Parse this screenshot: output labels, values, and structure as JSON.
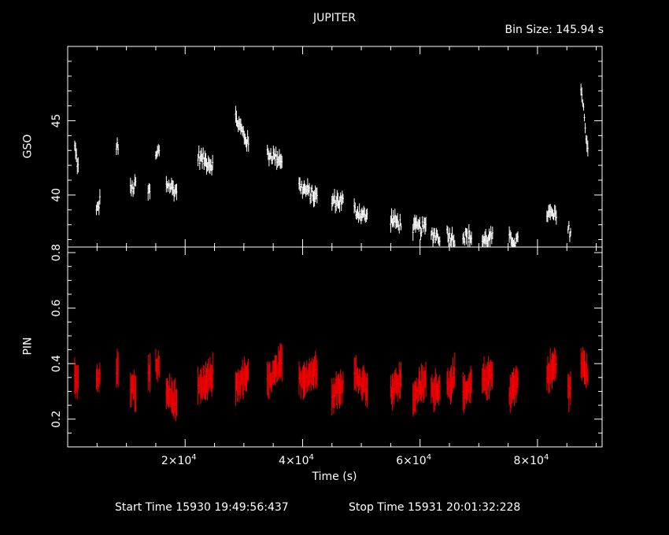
{
  "header": {
    "title": "JUPITER",
    "bin_size": "Bin Size:  145.94  s"
  },
  "footer": {
    "start_time": "Start Time 15930 19:49:56:437",
    "stop_time": "Stop Time 15931 20:01:32:228"
  },
  "colors": {
    "background": "#000000",
    "gso_series": "#ffffff",
    "pin_series": "#ff0000",
    "axes": "#ffffff"
  },
  "chart_data": [
    {
      "type": "scatter",
      "panel": "top",
      "ylabel": "GSO",
      "xlabel": "",
      "xlim": [
        0,
        91000
      ],
      "ylim": [
        36.5,
        50
      ],
      "yticks": [
        40,
        45
      ],
      "error_bars": true,
      "series": [
        {
          "color": "#ffffff",
          "segments": [
            {
              "x": [
                1200,
                1900
              ],
              "y": [
                43.2,
                41.6
              ]
            },
            {
              "x": [
                4900,
                5500
              ],
              "y": [
                38.8,
                39.6
              ]
            },
            {
              "x": [
                8300,
                8700
              ],
              "y": [
                43.4,
                43.2
              ]
            },
            {
              "x": [
                10700,
                11600
              ],
              "y": [
                40.3,
                40.7
              ]
            },
            {
              "x": [
                13700,
                14000
              ],
              "y": [
                40.2,
                40.2
              ]
            },
            {
              "x": [
                15000,
                15600
              ],
              "y": [
                42.5,
                43.1
              ]
            },
            {
              "x": [
                16800,
                18600
              ],
              "y": [
                40.8,
                40.2
              ]
            },
            {
              "x": [
                22200,
                24800
              ],
              "y": [
                42.6,
                42.0
              ]
            },
            {
              "x": [
                28600,
                30800
              ],
              "y": [
                45.2,
                43.4
              ]
            },
            {
              "x": [
                34000,
                36500
              ],
              "y": [
                42.8,
                42.4
              ]
            },
            {
              "x": [
                39400,
                42600
              ],
              "y": [
                40.6,
                39.8
              ]
            },
            {
              "x": [
                45000,
                47000
              ],
              "y": [
                39.6,
                39.6
              ]
            },
            {
              "x": [
                48800,
                51000
              ],
              "y": [
                39.0,
                38.5
              ]
            },
            {
              "x": [
                55000,
                56800
              ],
              "y": [
                38.4,
                38.0
              ]
            },
            {
              "x": [
                58800,
                61000
              ],
              "y": [
                37.8,
                37.8
              ]
            },
            {
              "x": [
                61900,
                63400
              ],
              "y": [
                37.4,
                37.2
              ]
            },
            {
              "x": [
                64600,
                66000
              ],
              "y": [
                37.4,
                37.0
              ]
            },
            {
              "x": [
                67300,
                68800
              ],
              "y": [
                37.2,
                37.2
              ]
            },
            {
              "x": [
                70600,
                72400
              ],
              "y": [
                36.9,
                37.2
              ]
            },
            {
              "x": [
                75200,
                76800
              ],
              "y": [
                37.0,
                36.8
              ]
            },
            {
              "x": [
                81600,
                83300
              ],
              "y": [
                38.8,
                38.5
              ]
            },
            {
              "x": [
                85200,
                85700
              ],
              "y": [
                37.6,
                37.6
              ]
            },
            {
              "x": [
                87400,
                88700
              ],
              "y": [
                47.2,
                42.6
              ]
            }
          ]
        }
      ]
    },
    {
      "type": "scatter",
      "panel": "bottom",
      "ylabel": "PIN",
      "xlabel": "Time (s)",
      "xlim": [
        0,
        91000
      ],
      "ylim": [
        0.1,
        0.82
      ],
      "yticks": [
        0.2,
        0.4,
        0.6,
        0.8
      ],
      "xticks": [
        20000,
        40000,
        60000,
        80000
      ],
      "xtick_labels": [
        [
          "2",
          "4"
        ],
        [
          "4",
          "4"
        ],
        [
          "6",
          "4"
        ],
        [
          "8",
          "4"
        ]
      ],
      "error_bars": true,
      "series": [
        {
          "color": "#ff0000",
          "segments": [
            {
              "x": [
                1200,
                1900
              ],
              "y": [
                0.36,
                0.33
              ]
            },
            {
              "x": [
                4900,
                5500
              ],
              "y": [
                0.34,
                0.35
              ]
            },
            {
              "x": [
                8300,
                8700
              ],
              "y": [
                0.38,
                0.37
              ]
            },
            {
              "x": [
                10700,
                11600
              ],
              "y": [
                0.32,
                0.3
              ]
            },
            {
              "x": [
                13700,
                14000
              ],
              "y": [
                0.36,
                0.35
              ]
            },
            {
              "x": [
                15000,
                15600
              ],
              "y": [
                0.4,
                0.38
              ]
            },
            {
              "x": [
                16800,
                18600
              ],
              "y": [
                0.3,
                0.26
              ]
            },
            {
              "x": [
                22200,
                24800
              ],
              "y": [
                0.3,
                0.36
              ]
            },
            {
              "x": [
                28600,
                30800
              ],
              "y": [
                0.32,
                0.36
              ]
            },
            {
              "x": [
                34000,
                36500
              ],
              "y": [
                0.33,
                0.4
              ]
            },
            {
              "x": [
                39400,
                42600
              ],
              "y": [
                0.34,
                0.38
              ]
            },
            {
              "x": [
                45000,
                47000
              ],
              "y": [
                0.3,
                0.32
              ]
            },
            {
              "x": [
                48800,
                51000
              ],
              "y": [
                0.36,
                0.32
              ]
            },
            {
              "x": [
                55000,
                56800
              ],
              "y": [
                0.3,
                0.34
              ]
            },
            {
              "x": [
                58800,
                61000
              ],
              "y": [
                0.28,
                0.34
              ]
            },
            {
              "x": [
                61900,
                63400
              ],
              "y": [
                0.3,
                0.32
              ]
            },
            {
              "x": [
                64600,
                66000
              ],
              "y": [
                0.32,
                0.36
              ]
            },
            {
              "x": [
                67300,
                68800
              ],
              "y": [
                0.28,
                0.32
              ]
            },
            {
              "x": [
                70600,
                72400
              ],
              "y": [
                0.34,
                0.36
              ]
            },
            {
              "x": [
                75200,
                76800
              ],
              "y": [
                0.3,
                0.34
              ]
            },
            {
              "x": [
                81600,
                83300
              ],
              "y": [
                0.36,
                0.4
              ]
            },
            {
              "x": [
                85200,
                85700
              ],
              "y": [
                0.3,
                0.32
              ]
            },
            {
              "x": [
                87400,
                88700
              ],
              "y": [
                0.4,
                0.36
              ]
            }
          ]
        }
      ]
    }
  ]
}
